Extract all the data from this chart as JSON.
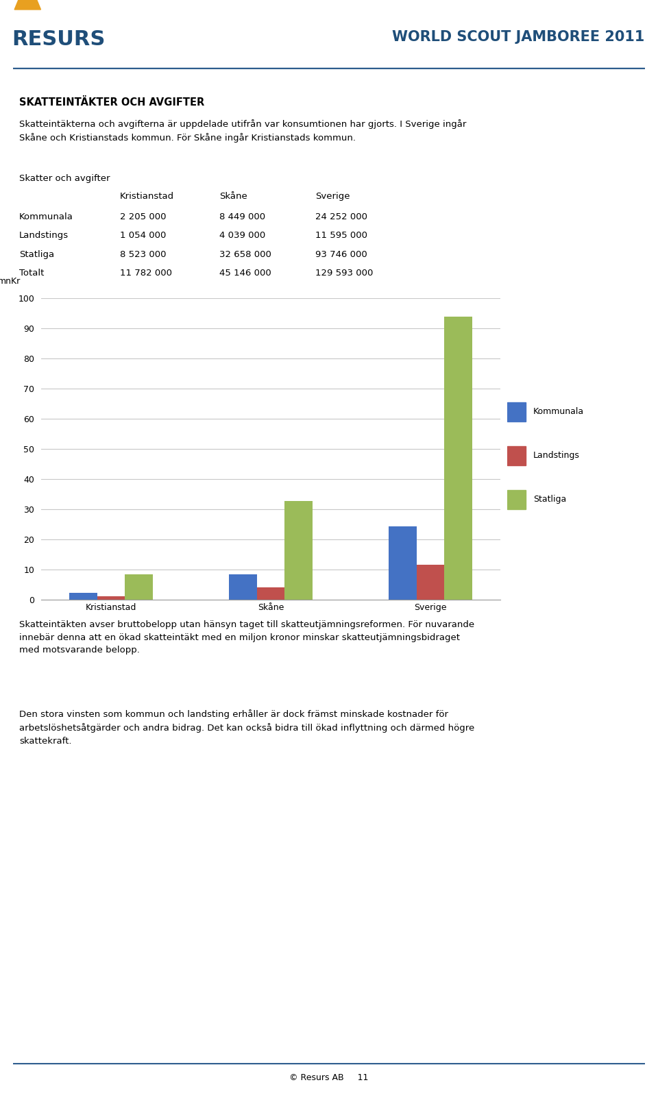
{
  "page_title": "WORLD SCOUT JAMBOREE 2011",
  "section_title": "SKATTEINTÄKTER OCH AVGIFTER",
  "intro_text": "Skatteintäkterna och avgifterna är uppdelade utifrån var konsumtionen har gjorts. I Sverige ingår\nSkåne och Kristianstads kommun. För Skåne ingår Kristianstads kommun.",
  "table_header": "Skatter och avgifter",
  "table_columns": [
    "",
    "Kristianstad",
    "Skåne",
    "Sverige"
  ],
  "table_rows": [
    [
      "Kommunala",
      "2 205 000",
      "8 449 000",
      "24 252 000"
    ],
    [
      "Landstings",
      "1 054 000",
      "4 039 000",
      "11 595 000"
    ],
    [
      "Statliga",
      "8 523 000",
      "32 658 000",
      "93 746 000"
    ],
    [
      "Totalt",
      "11 782 000",
      "45 146 000",
      "129 593 000"
    ]
  ],
  "chart_groups": [
    "Kristianstad",
    "Skåne",
    "Sverige"
  ],
  "chart_series": {
    "Kommunala": [
      2.205,
      8.449,
      24.252
    ],
    "Landstings": [
      1.054,
      4.039,
      11.595
    ],
    "Statliga": [
      8.523,
      32.658,
      93.746
    ]
  },
  "bar_colors": {
    "Kommunala": "#4472C4",
    "Landstings": "#C0504D",
    "Statliga": "#9BBB59"
  },
  "ylabel": "mnKr",
  "ylim": [
    0,
    100
  ],
  "yticks": [
    0,
    10,
    20,
    30,
    40,
    50,
    60,
    70,
    80,
    90,
    100
  ],
  "footer_text1": "Skatteintäkten avser bruttobelopp utan hänsyn taget till skatteutjämningsreformen. För nuvarande\ninnebär denna att en ökad skatteintäkt med en miljon kronor minskar skatteutjämningsbidraget\nmed motsvarande belopp.",
  "footer_text2": "Den stora vinsten som kommun och landsting erhåller är dock främst minskade kostnader för\narbetslöshetsåtgärder och andra bidrag. Det kan också bidra till ökad inflyttning och därmed högre\nskattekraft.",
  "copyright_text": "© Resurs AB     11",
  "background_color": "#FFFFFF",
  "header_line_color": "#2E5D8E",
  "resurs_color": "#1F4E79",
  "title_color": "#1F4E79"
}
